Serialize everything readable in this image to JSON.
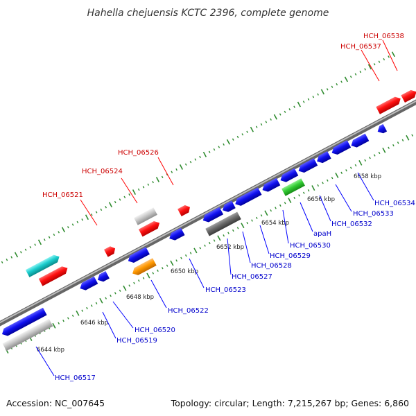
{
  "title": "Hahella chejuensis KCTC 2396, complete genome",
  "footer": {
    "accession": "Accession: NC_007645",
    "summary": "Topology: circular; Length: 7,215,267 bp; Genes: 6,860"
  },
  "colors": {
    "backbone": "#8a8a8a",
    "tick": "#2e8b2e",
    "forward_label": "#cc0000",
    "reverse_label": "#0000cc",
    "leader_forward": "#ff0000",
    "leader_reverse": "#0000ff"
  },
  "scale_labels": [
    "6644 kbp",
    "6646 kbp",
    "6648 kbp",
    "6650 kbp",
    "6652 kbp",
    "6654 kbp",
    "6656 kbp",
    "6658 kbp"
  ],
  "forward_labels": [
    "HCH_06521",
    "HCH_06524",
    "HCH_06526",
    "HCH_06537",
    "HCH_06538"
  ],
  "reverse_labels": [
    "HCH_06517",
    "HCH_06519",
    "HCH_06520",
    "HCH_06522",
    "HCH_06523",
    "HCH_06527",
    "HCH_06528",
    "HCH_06529",
    "HCH_06530",
    "apaH",
    "HCH_06532",
    "HCH_06533",
    "HCH_06534"
  ]
}
